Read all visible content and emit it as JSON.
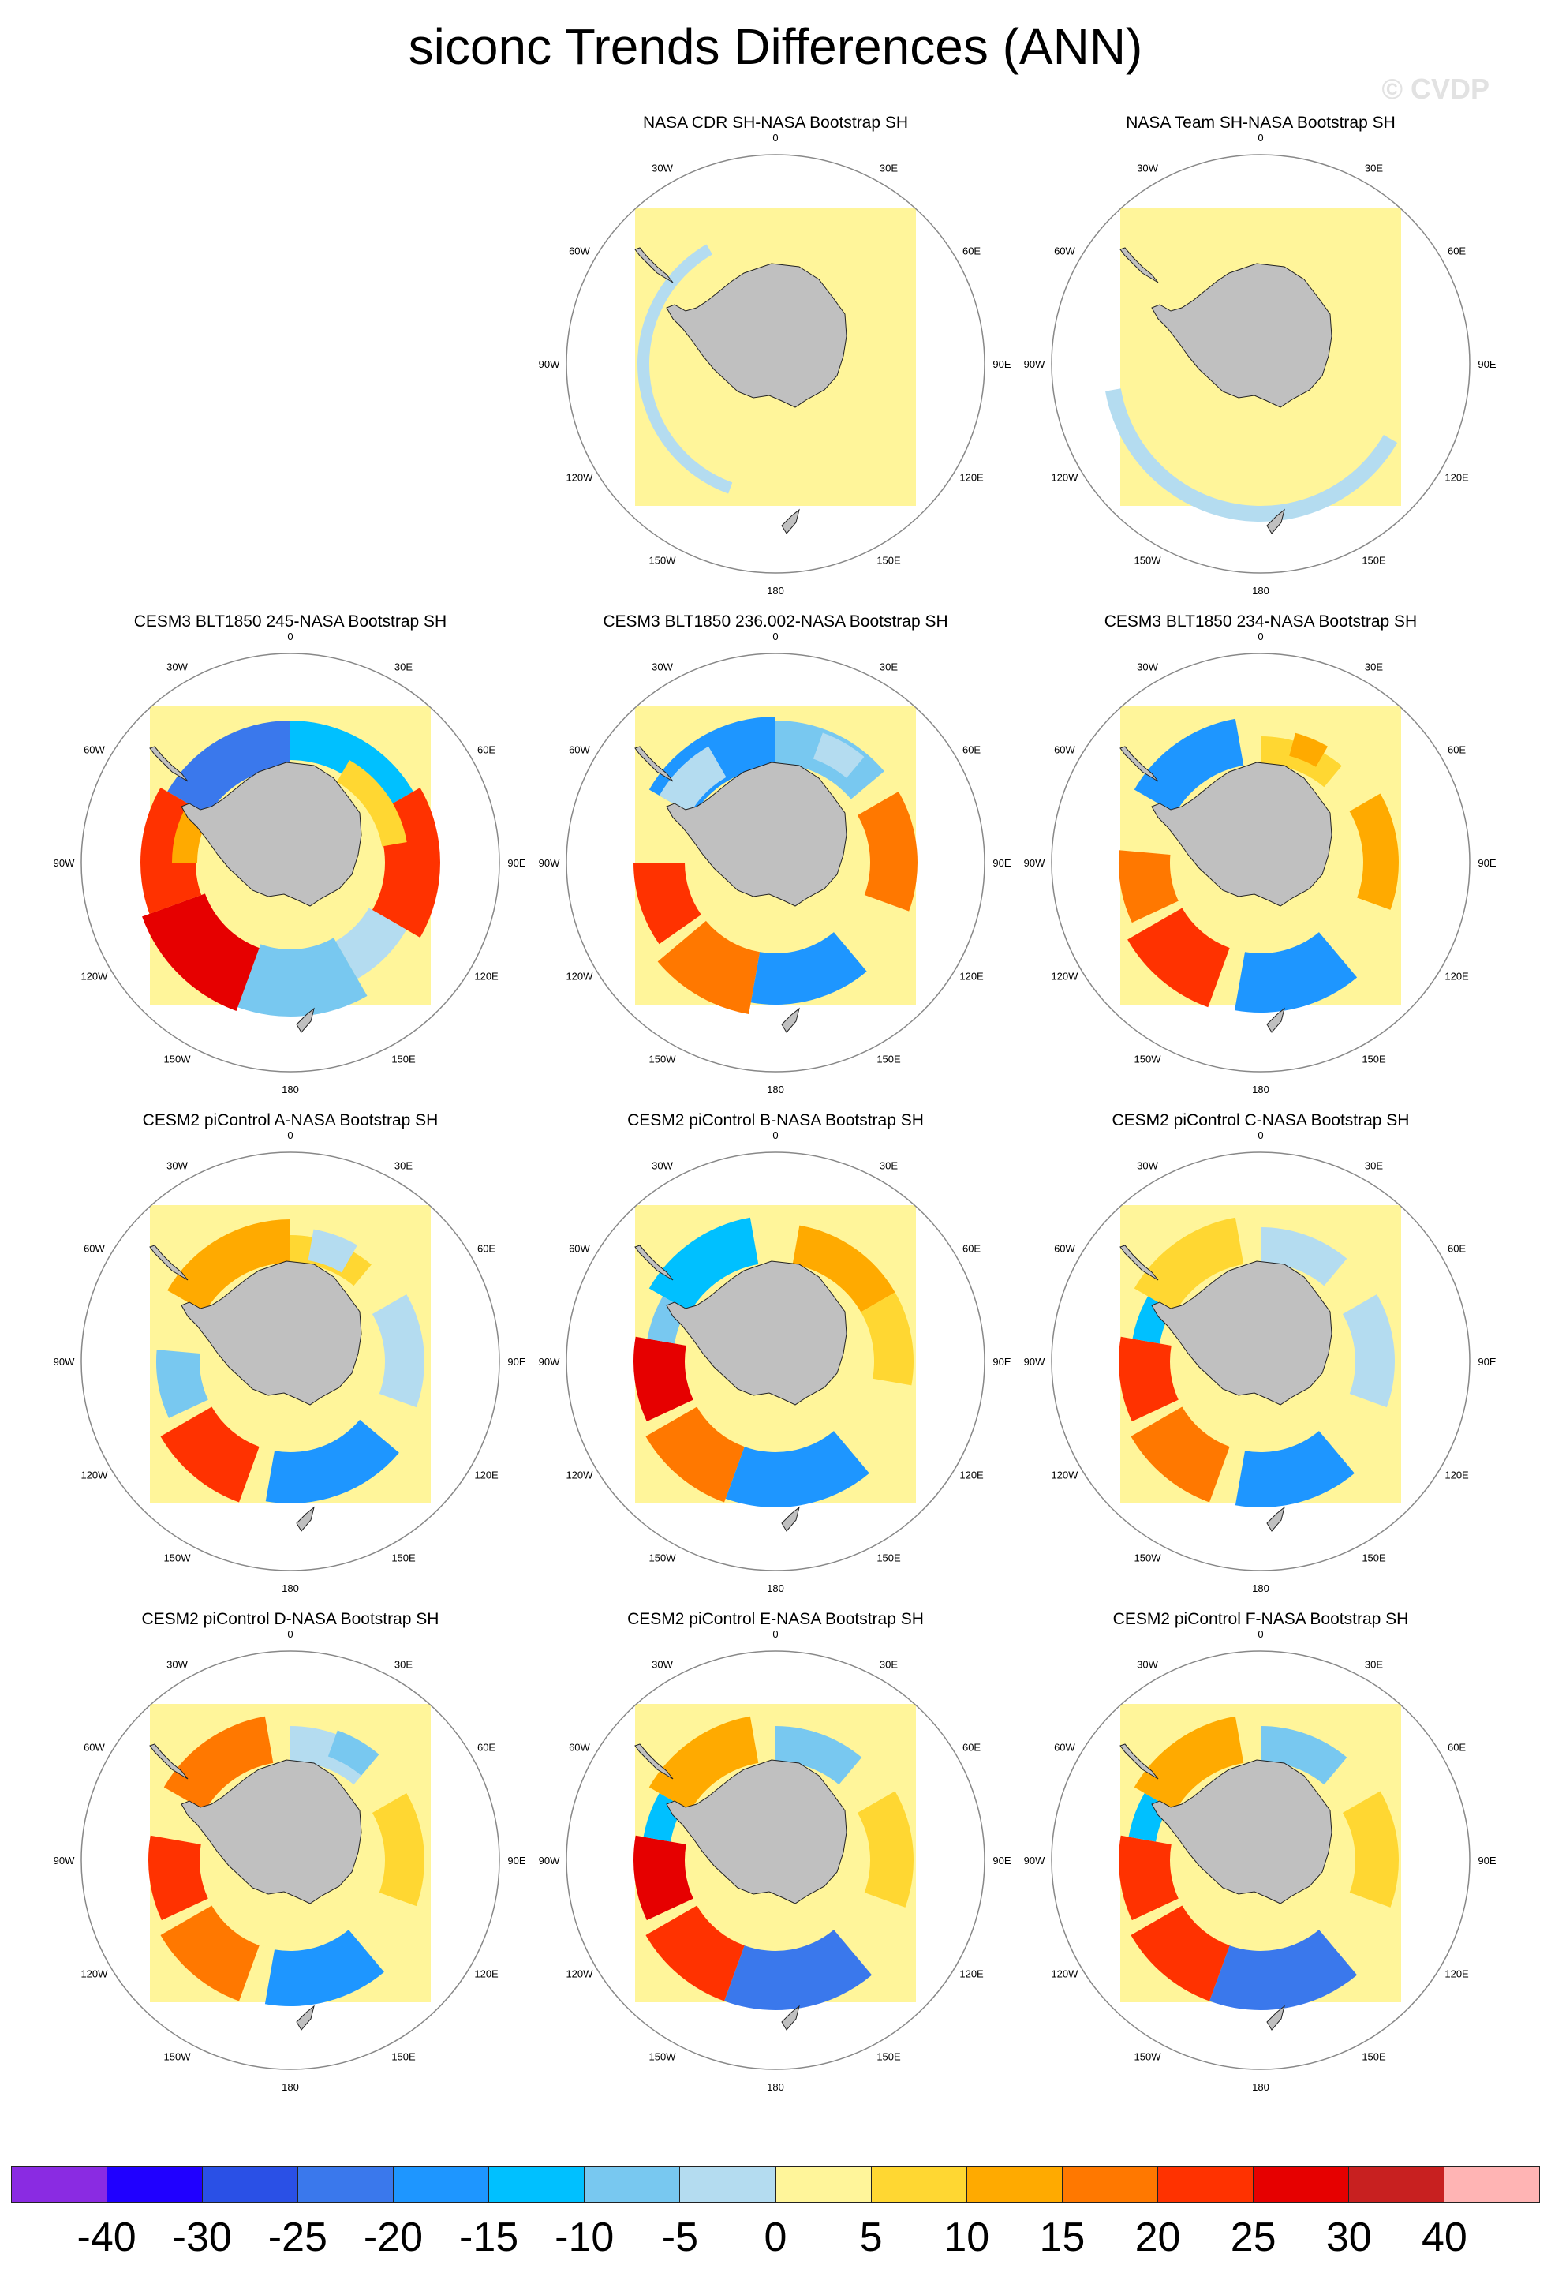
{
  "title": "siconc Trends Differences (ANN)",
  "watermark": "© CVDP",
  "panels": [
    {
      "title": "NASA CDR SH-NASA Bootstrap SH",
      "col": 1,
      "row": 0,
      "pattern": "obs1"
    },
    {
      "title": "NASA Team SH-NASA Bootstrap SH",
      "col": 2,
      "row": 0,
      "pattern": "obs2"
    },
    {
      "title": "CESM3 BLT1850 245-NASA Bootstrap SH",
      "col": 0,
      "row": 1,
      "pattern": "m245"
    },
    {
      "title": "CESM3 BLT1850 236.002-NASA Bootstrap SH",
      "col": 1,
      "row": 1,
      "pattern": "m236"
    },
    {
      "title": "CESM3 BLT1850 234-NASA Bootstrap SH",
      "col": 2,
      "row": 1,
      "pattern": "m234"
    },
    {
      "title": "CESM2 piControl A-NASA Bootstrap SH",
      "col": 0,
      "row": 2,
      "pattern": "pa"
    },
    {
      "title": "CESM2 piControl B-NASA Bootstrap SH",
      "col": 1,
      "row": 2,
      "pattern": "pb"
    },
    {
      "title": "CESM2 piControl C-NASA Bootstrap SH",
      "col": 2,
      "row": 2,
      "pattern": "pc"
    },
    {
      "title": "CESM2 piControl D-NASA Bootstrap SH",
      "col": 0,
      "row": 3,
      "pattern": "pd"
    },
    {
      "title": "CESM2 piControl E-NASA Bootstrap SH",
      "col": 1,
      "row": 3,
      "pattern": "pe"
    },
    {
      "title": "CESM2 piControl F-NASA Bootstrap SH",
      "col": 2,
      "row": 3,
      "pattern": "pf"
    }
  ],
  "lon_labels": [
    "0",
    "30E",
    "60E",
    "90E",
    "120E",
    "150E",
    "180",
    "150W",
    "120W",
    "90W",
    "60W",
    "30W"
  ],
  "colorbar": {
    "colors": [
      "#8a2be2",
      "#2000ff",
      "#2a50e6",
      "#3a78ec",
      "#1e96ff",
      "#00c0ff",
      "#78c8f0",
      "#b4dcf0",
      "#fff59a",
      "#ffd732",
      "#ffaa00",
      "#ff7800",
      "#ff3200",
      "#e60000",
      "#c82020",
      "#ffb4b4"
    ],
    "labels": [
      "-40",
      "-30",
      "-25",
      "-20",
      "-15",
      "-10",
      "-5",
      "0",
      "5",
      "10",
      "15",
      "20",
      "25",
      "30",
      "40"
    ]
  },
  "colors": {
    "land": "#c0c0c0",
    "ocean_zero": "#fff59a",
    "background": "#ffffff"
  }
}
